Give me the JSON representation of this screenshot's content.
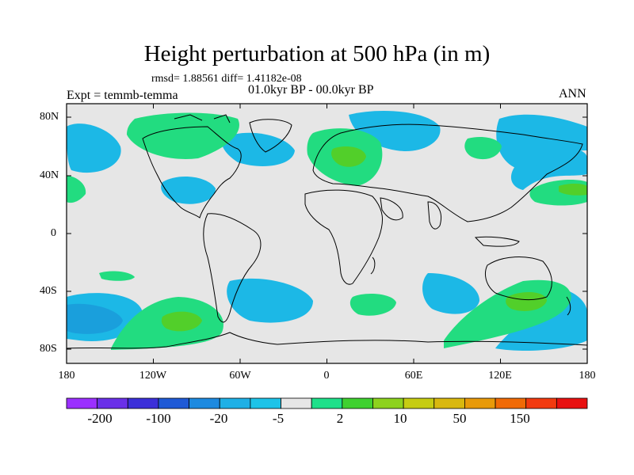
{
  "title": "Height perturbation at 500 hPa (in m)",
  "stats": "rmsd= 1.88561 diff= 1.41182e-08",
  "period": "01.0kyr BP - 00.0kyr BP",
  "experiment": "Expt = temmb-temma",
  "season": "ANN",
  "lat_labels": [
    "80N",
    "40N",
    "0",
    "40S",
    "80S"
  ],
  "lon_labels": [
    "180",
    "120W",
    "60W",
    "0",
    "60E",
    "120E",
    "180"
  ],
  "colorbar": {
    "labels": [
      "-200",
      "-100",
      "-20",
      "-5",
      "2",
      "10",
      "50",
      "150"
    ],
    "colors": [
      "#9b30ff",
      "#6a30e8",
      "#3b2fd9",
      "#1f5ad6",
      "#1d8ae0",
      "#1fb0e6",
      "#1ec3e8",
      "#e6e6e6",
      "#1fe08a",
      "#3fd130",
      "#8dd21e",
      "#c6cc12",
      "#d9b80f",
      "#e89a0a",
      "#f06a06",
      "#f23a0f",
      "#e81010"
    ]
  },
  "fills": {
    "blue": "#1cb8e6",
    "mid_blue": "#1a9fdc",
    "green": "#22dc80",
    "deep_green": "#52cf2a",
    "background": "#e6e6e6"
  }
}
